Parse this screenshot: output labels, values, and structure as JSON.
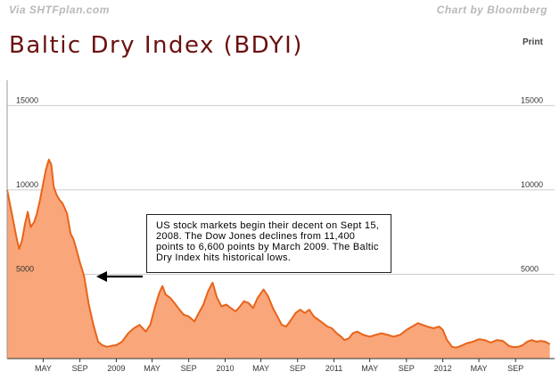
{
  "header": {
    "source_credit": "Via SHTFplan.com",
    "chart_credit": "Chart by Bloomberg",
    "print_label": "Print"
  },
  "annotation": {
    "text": "US stock markets begin their decent on Sept 15, 2008. The Dow Jones declines from 11,400 points to 6,600 points by March 2009. The Baltic Dry Index hits historical lows."
  },
  "colors": {
    "line": "#e8641a",
    "fill": "#f9a67a",
    "title": "#6b1010",
    "grid": "#cccccc"
  },
  "chart_data": {
    "type": "area",
    "title": "Baltic Dry Index (BDYI)",
    "xlabel": "",
    "ylabel": "",
    "x_range": [
      "2008-01-01",
      "2013-01-10"
    ],
    "ylim": [
      0,
      16500
    ],
    "y_ticks": [
      5000,
      10000,
      15000
    ],
    "y_tick_labels": [
      "5000",
      "10000",
      "15000"
    ],
    "y_label_sides": [
      "left",
      "right"
    ],
    "grid": true,
    "x_ticks": [
      {
        "date": "2008-05-01",
        "label": "MAY"
      },
      {
        "date": "2008-09-01",
        "label": "SEP"
      },
      {
        "date": "2009-01-01",
        "label": "2009"
      },
      {
        "date": "2009-05-01",
        "label": "MAY"
      },
      {
        "date": "2009-09-01",
        "label": "SEP"
      },
      {
        "date": "2010-01-01",
        "label": "2010"
      },
      {
        "date": "2010-05-01",
        "label": "MAY"
      },
      {
        "date": "2010-09-01",
        "label": "SEP"
      },
      {
        "date": "2011-01-01",
        "label": "2011"
      },
      {
        "date": "2011-05-01",
        "label": "MAY"
      },
      {
        "date": "2011-09-01",
        "label": "SEP"
      },
      {
        "date": "2012-01-01",
        "label": "2012"
      },
      {
        "date": "2012-05-01",
        "label": "MAY"
      },
      {
        "date": "2012-09-01",
        "label": "SEP"
      }
    ],
    "series": [
      {
        "points": [
          [
            "2008-01-01",
            10000
          ],
          [
            "2008-01-10",
            9200
          ],
          [
            "2008-01-20",
            8300
          ],
          [
            "2008-02-01",
            7200
          ],
          [
            "2008-02-10",
            6500
          ],
          [
            "2008-02-20",
            7000
          ],
          [
            "2008-03-01",
            8000
          ],
          [
            "2008-03-10",
            8700
          ],
          [
            "2008-03-20",
            7800
          ],
          [
            "2008-04-01",
            8100
          ],
          [
            "2008-04-10",
            8600
          ],
          [
            "2008-04-20",
            9400
          ],
          [
            "2008-05-01",
            10400
          ],
          [
            "2008-05-10",
            11200
          ],
          [
            "2008-05-20",
            11800
          ],
          [
            "2008-05-28",
            11500
          ],
          [
            "2008-06-05",
            10200
          ],
          [
            "2008-06-15",
            9700
          ],
          [
            "2008-06-25",
            9400
          ],
          [
            "2008-07-05",
            9200
          ],
          [
            "2008-07-20",
            8600
          ],
          [
            "2008-08-01",
            7400
          ],
          [
            "2008-08-10",
            7100
          ],
          [
            "2008-08-20",
            6500
          ],
          [
            "2008-09-01",
            5700
          ],
          [
            "2008-09-15",
            4900
          ],
          [
            "2008-10-01",
            3200
          ],
          [
            "2008-10-15",
            2100
          ],
          [
            "2008-11-01",
            1000
          ],
          [
            "2008-11-15",
            800
          ],
          [
            "2008-12-01",
            700
          ],
          [
            "2008-12-15",
            750
          ],
          [
            "2009-01-01",
            800
          ],
          [
            "2009-01-20",
            1000
          ],
          [
            "2009-02-10",
            1500
          ],
          [
            "2009-03-01",
            1800
          ],
          [
            "2009-03-20",
            2000
          ],
          [
            "2009-04-10",
            1600
          ],
          [
            "2009-04-25",
            2000
          ],
          [
            "2009-05-10",
            3000
          ],
          [
            "2009-05-25",
            3900
          ],
          [
            "2009-06-05",
            4300
          ],
          [
            "2009-06-15",
            3800
          ],
          [
            "2009-07-01",
            3600
          ],
          [
            "2009-07-15",
            3300
          ],
          [
            "2009-08-01",
            2900
          ],
          [
            "2009-08-15",
            2600
          ],
          [
            "2009-09-01",
            2500
          ],
          [
            "2009-09-20",
            2200
          ],
          [
            "2009-10-05",
            2700
          ],
          [
            "2009-10-20",
            3200
          ],
          [
            "2009-11-05",
            4000
          ],
          [
            "2009-11-20",
            4500
          ],
          [
            "2009-12-05",
            3600
          ],
          [
            "2009-12-20",
            3100
          ],
          [
            "2010-01-05",
            3200
          ],
          [
            "2010-01-20",
            3000
          ],
          [
            "2010-02-05",
            2800
          ],
          [
            "2010-02-20",
            3100
          ],
          [
            "2010-03-05",
            3400
          ],
          [
            "2010-03-20",
            3300
          ],
          [
            "2010-04-05",
            3000
          ],
          [
            "2010-04-20",
            3600
          ],
          [
            "2010-05-10",
            4100
          ],
          [
            "2010-05-25",
            3700
          ],
          [
            "2010-06-10",
            3000
          ],
          [
            "2010-06-25",
            2500
          ],
          [
            "2010-07-10",
            2000
          ],
          [
            "2010-07-25",
            1900
          ],
          [
            "2010-08-10",
            2300
          ],
          [
            "2010-08-25",
            2700
          ],
          [
            "2010-09-10",
            2900
          ],
          [
            "2010-09-25",
            2700
          ],
          [
            "2010-10-10",
            2900
          ],
          [
            "2010-10-25",
            2500
          ],
          [
            "2010-11-10",
            2300
          ],
          [
            "2010-11-25",
            2100
          ],
          [
            "2010-12-10",
            1900
          ],
          [
            "2010-12-25",
            1800
          ],
          [
            "2011-01-10",
            1500
          ],
          [
            "2011-01-25",
            1300
          ],
          [
            "2011-02-05",
            1100
          ],
          [
            "2011-02-20",
            1200
          ],
          [
            "2011-03-05",
            1500
          ],
          [
            "2011-03-20",
            1600
          ],
          [
            "2011-04-10",
            1400
          ],
          [
            "2011-05-01",
            1300
          ],
          [
            "2011-05-20",
            1400
          ],
          [
            "2011-06-10",
            1500
          ],
          [
            "2011-07-01",
            1400
          ],
          [
            "2011-07-20",
            1300
          ],
          [
            "2011-08-10",
            1400
          ],
          [
            "2011-09-01",
            1700
          ],
          [
            "2011-09-20",
            1900
          ],
          [
            "2011-10-10",
            2100
          ],
          [
            "2011-10-25",
            2000
          ],
          [
            "2011-11-10",
            1900
          ],
          [
            "2011-12-01",
            1800
          ],
          [
            "2011-12-20",
            1900
          ],
          [
            "2012-01-01",
            1700
          ],
          [
            "2012-01-15",
            1100
          ],
          [
            "2012-02-01",
            700
          ],
          [
            "2012-02-15",
            650
          ],
          [
            "2012-03-01",
            750
          ],
          [
            "2012-03-20",
            900
          ],
          [
            "2012-04-10",
            1000
          ],
          [
            "2012-05-01",
            1150
          ],
          [
            "2012-05-20",
            1100
          ],
          [
            "2012-06-10",
            950
          ],
          [
            "2012-07-01",
            1100
          ],
          [
            "2012-07-20",
            1050
          ],
          [
            "2012-08-10",
            750
          ],
          [
            "2012-08-25",
            680
          ],
          [
            "2012-09-10",
            700
          ],
          [
            "2012-09-25",
            800
          ],
          [
            "2012-10-10",
            1000
          ],
          [
            "2012-10-25",
            1100
          ],
          [
            "2012-11-10",
            1000
          ],
          [
            "2012-11-25",
            1050
          ],
          [
            "2012-12-10",
            1000
          ],
          [
            "2012-12-25",
            850
          ]
        ]
      }
    ]
  }
}
